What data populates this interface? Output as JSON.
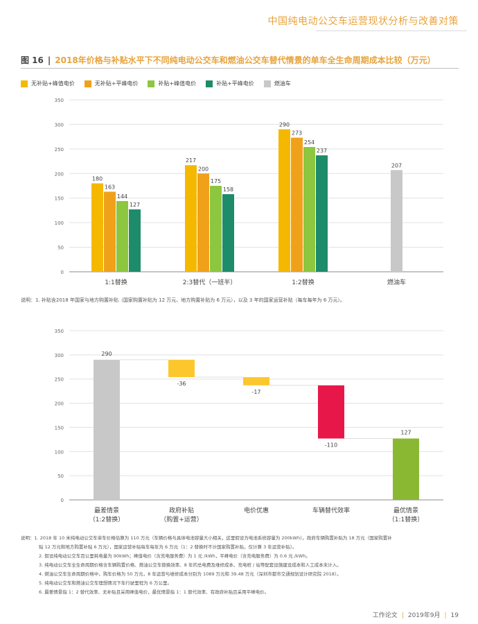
{
  "header": {
    "title": "中国纯电动公交车运营现状分析与改善对策"
  },
  "figure": {
    "number": "图 16",
    "separator": "|",
    "title": "2018年价格与补贴水平下不同纯电动公交车和燃油公交车替代情景的单车全生命周期成本比较（万元）"
  },
  "colors": {
    "accent": "#e8a33c",
    "bar_gold": "#f5b800",
    "bar_orange": "#f0a11a",
    "bar_lightgreen": "#8dc63f",
    "bar_darkgreen": "#1e8b6a",
    "bar_grey": "#c8c8c8",
    "wf_yellow": "#fcc72c",
    "wf_red": "#e8174a",
    "wf_green": "#8ab833"
  },
  "chart_data": [
    {
      "type": "bar",
      "title": "",
      "ylim": [
        0,
        350
      ],
      "yticks": [
        0,
        50,
        100,
        150,
        200,
        250,
        300,
        350
      ],
      "categories": [
        "1:1替换",
        "2:3替代（一班半）",
        "1:2替换",
        "燃油车"
      ],
      "legend": [
        "无补贴+峰值电价",
        "无补贴+平峰电价",
        "补贴+峰值电价",
        "补贴+平峰电价",
        "燃油车"
      ],
      "series": [
        {
          "name": "无补贴+峰值电价",
          "color": "#f5b800",
          "values": [
            180,
            217,
            290,
            null
          ]
        },
        {
          "name": "无补贴+平峰电价",
          "color": "#f0a11a",
          "values": [
            163,
            200,
            273,
            null
          ]
        },
        {
          "name": "补贴+峰值电价",
          "color": "#8dc63f",
          "values": [
            144,
            175,
            254,
            null
          ]
        },
        {
          "name": "补贴+平峰电价",
          "color": "#1e8b6a",
          "values": [
            127,
            158,
            237,
            null
          ]
        },
        {
          "name": "燃油车",
          "color": "#c8c8c8",
          "values": [
            null,
            null,
            null,
            207
          ]
        }
      ]
    },
    {
      "type": "bar",
      "subtype": "waterfall",
      "title": "",
      "ylim": [
        0,
        350
      ],
      "yticks": [
        0,
        50,
        100,
        150,
        200,
        250,
        300,
        350
      ],
      "steps": [
        {
          "label": [
            "最差情景",
            "（1:2替换）"
          ],
          "value": 290,
          "kind": "total",
          "display": "290",
          "color": "#c8c8c8"
        },
        {
          "label": [
            "政府补贴",
            "（购置+运营）"
          ],
          "value": -36,
          "kind": "delta",
          "display": "-36",
          "color": "#fcc72c"
        },
        {
          "label": [
            "电价优惠"
          ],
          "value": -17,
          "kind": "delta",
          "display": "-17",
          "color": "#fcc72c"
        },
        {
          "label": [
            "车辆替代效率"
          ],
          "value": -110,
          "kind": "delta",
          "display": "-110",
          "color": "#e8174a"
        },
        {
          "label": [
            "最优情景",
            "（1:1替换）"
          ],
          "value": 127,
          "kind": "total",
          "display": "127",
          "color": "#8ab833"
        }
      ]
    }
  ],
  "note1": "说明：1. 补贴含2018 年国家与地方购置补贴（国家购置补贴为 12 万元、地方购置补贴为 6 万元），以及 3 年的国家运营补贴（每车每年为 6 万元）。",
  "notes2": [
    {
      "text": "说明：1. 2018 年 10 米纯电动公交车单车价格估算为 110 万元（车辆价格与具体电池容量大小相关，这里假设为电池系统容量为 200kWh）。政府车辆购置补贴为 18 万元（国家购置补",
      "indent": false
    },
    {
      "text": "贴 12 万元和地方购置补贴 6 万元），国家运营补贴每车每年为 6 万元（1：2 替换时不计国家购置补贴，仅计算 3 年运营补贴）。",
      "indent": true
    },
    {
      "text": "2. 假设纯电动公交车百公里耗电量为 90kWh；峰值电价（含充电服务费）为 1 元 /kWh，平峰电价（含充电服务费）为 0.6 元 /kWh。",
      "indent": true
    },
    {
      "text": "3. 纯电动公交车全生命周期价格含车辆购置价格、燃油公交车替换效率、8 年的总电费及维修成本、充电桩 / 站等配套设施建设成本和人工成本未计入。",
      "indent": true
    },
    {
      "text": "4. 燃油公交车生命周期价格中，购车价格为 50 万元，8 年运营与维修成本分别为 1089 万元和 39.48 万元（深圳市都市交通规划设计研究院 2018）。",
      "indent": true
    },
    {
      "text": "5. 纯电动公交车和燃油公交车理想情况下年行驶里程为 6 万公里。",
      "indent": true
    },
    {
      "text": "6. 最差情景指 1：2 替代效率、无补贴且采用峰值电价，最优情景指 1：1 替代效率、有政府补贴且采用平峰电价。",
      "indent": true
    }
  ],
  "footer": {
    "left": "工作论文",
    "sep": "|",
    "date": "2019年9月",
    "sep2": "|",
    "page": "19"
  }
}
